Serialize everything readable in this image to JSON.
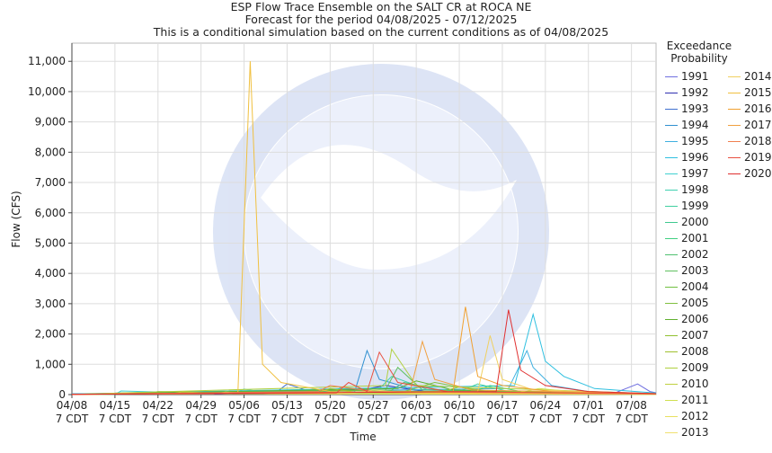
{
  "chart_data": {
    "type": "line",
    "title": "ESP Flow Trace Ensemble on the SALT CR at ROCA NE",
    "subtitle": "Forecast for the period 04/08/2025 - 07/12/2025",
    "subtitle2": "This is a conditional simulation based on the current conditions as of 04/08/2025",
    "x_label": "Time",
    "y_label": "Flow (CFS)",
    "legend_title": "Exceedance Probability",
    "xlim": [
      "04/08",
      "07/12"
    ],
    "xticks": [
      "04/08",
      "04/15",
      "04/22",
      "04/29",
      "05/06",
      "05/13",
      "05/20",
      "05/27",
      "06/03",
      "06/10",
      "06/17",
      "06/24",
      "07/01",
      "07/08"
    ],
    "xtick_sublabel": "7 CDT",
    "ylim": [
      0,
      11600
    ],
    "yticks": [
      0,
      {
        "value": 1000,
        "label": "1,000"
      },
      {
        "value": 2000,
        "label": "2,000"
      },
      {
        "value": 3000,
        "label": "3,000"
      },
      {
        "value": 4000,
        "label": "4,000"
      },
      {
        "value": 5000,
        "label": "5,000"
      },
      {
        "value": 6000,
        "label": "6,000"
      },
      {
        "value": 7000,
        "label": "7,000"
      },
      {
        "value": 8000,
        "label": "8,000"
      },
      {
        "value": 9000,
        "label": "9,000"
      },
      {
        "value": 10000,
        "label": "10,000"
      },
      {
        "value": 11000,
        "label": "11,000"
      }
    ],
    "grid": true,
    "series": [
      {
        "name": "1991",
        "color": "#7070e0",
        "x": [
          "04/08",
          "07/05",
          "07/09",
          "07/11",
          "07/12"
        ],
        "values": [
          20,
          30,
          350,
          100,
          60
        ]
      },
      {
        "name": "1992",
        "color": "#3030b0",
        "x": [
          "04/08",
          "05/25",
          "05/29",
          "06/05",
          "07/12"
        ],
        "values": [
          10,
          150,
          300,
          80,
          20
        ]
      },
      {
        "name": "1993",
        "color": "#4070d0",
        "x": [
          "04/08",
          "05/11",
          "05/13",
          "05/16",
          "05/25",
          "07/12"
        ],
        "values": [
          10,
          40,
          350,
          150,
          60,
          10
        ]
      },
      {
        "name": "1994",
        "color": "#3090d0",
        "x": [
          "04/08",
          "05/24",
          "05/26",
          "05/28",
          "06/03",
          "07/12"
        ],
        "values": [
          20,
          100,
          1450,
          500,
          150,
          30
        ]
      },
      {
        "name": "1995",
        "color": "#40b0e0",
        "x": [
          "04/08",
          "06/18",
          "06/21",
          "06/22",
          "06/25",
          "07/01",
          "07/12"
        ],
        "values": [
          20,
          200,
          1450,
          900,
          300,
          100,
          30
        ]
      },
      {
        "name": "1996",
        "color": "#30c0e0",
        "x": [
          "04/08",
          "06/19",
          "06/22",
          "06/24",
          "06/27",
          "07/02",
          "07/12"
        ],
        "values": [
          20,
          300,
          2650,
          1100,
          600,
          200,
          50
        ]
      },
      {
        "name": "1997",
        "color": "#40d0d0",
        "x": [
          "04/08",
          "04/15",
          "04/16",
          "05/04",
          "05/06",
          "05/10",
          "07/12"
        ],
        "values": [
          10,
          10,
          120,
          20,
          180,
          50,
          10
        ]
      },
      {
        "name": "1998",
        "color": "#40d0b0",
        "x": [
          "04/08",
          "05/28",
          "05/30",
          "06/05",
          "07/12"
        ],
        "values": [
          10,
          200,
          600,
          150,
          20
        ]
      },
      {
        "name": "1999",
        "color": "#40d0a0",
        "x": [
          "04/08",
          "06/10",
          "06/13",
          "06/18",
          "07/12"
        ],
        "values": [
          10,
          100,
          350,
          100,
          20
        ]
      },
      {
        "name": "2000",
        "color": "#40c890",
        "x": [
          "04/08",
          "05/20",
          "05/22",
          "05/30",
          "07/12"
        ],
        "values": [
          10,
          80,
          250,
          60,
          10
        ]
      },
      {
        "name": "2001",
        "color": "#40d080",
        "x": [
          "04/08",
          "06/12",
          "06/15",
          "06/20",
          "07/12"
        ],
        "values": [
          10,
          80,
          300,
          100,
          10
        ]
      },
      {
        "name": "2002",
        "color": "#50c070",
        "x": [
          "04/08",
          "05/30",
          "06/01",
          "06/08",
          "07/12"
        ],
        "values": [
          10,
          150,
          400,
          100,
          20
        ]
      },
      {
        "name": "2003",
        "color": "#60c060",
        "x": [
          "04/08",
          "05/29",
          "05/31",
          "06/04",
          "07/12"
        ],
        "values": [
          10,
          150,
          900,
          150,
          20
        ]
      },
      {
        "name": "2004",
        "color": "#70c040",
        "x": [
          "04/08",
          "04/20",
          "04/22",
          "05/15",
          "05/17",
          "07/12"
        ],
        "values": [
          10,
          20,
          100,
          30,
          150,
          10
        ]
      },
      {
        "name": "2005",
        "color": "#80c040",
        "x": [
          "04/08",
          "06/01",
          "06/06",
          "06/14",
          "07/12"
        ],
        "values": [
          10,
          100,
          400,
          100,
          20
        ]
      },
      {
        "name": "2006",
        "color": "#60b030",
        "x": [
          "04/08",
          "05/31",
          "06/03",
          "06/09",
          "07/12"
        ],
        "values": [
          10,
          200,
          450,
          150,
          30
        ]
      },
      {
        "name": "2007",
        "color": "#90c030",
        "x": [
          "04/08",
          "06/07",
          "06/10",
          "06/17",
          "07/12"
        ],
        "values": [
          10,
          100,
          250,
          60,
          10
        ]
      },
      {
        "name": "2008",
        "color": "#a0c030",
        "x": [
          "04/08",
          "05/18",
          "05/20",
          "05/25",
          "07/12"
        ],
        "values": [
          10,
          60,
          200,
          50,
          10
        ]
      },
      {
        "name": "2009",
        "color": "#b0d040",
        "x": [
          "04/08",
          "05/29",
          "05/30",
          "06/03",
          "07/12"
        ],
        "values": [
          10,
          300,
          1500,
          300,
          30
        ]
      },
      {
        "name": "2010",
        "color": "#c0d040",
        "x": [
          "04/08",
          "04/24",
          "04/26",
          "05/03",
          "07/12"
        ],
        "values": [
          10,
          20,
          90,
          20,
          10
        ]
      },
      {
        "name": "2011",
        "color": "#d0e050",
        "x": [
          "04/08",
          "06/20",
          "06/23",
          "06/29",
          "07/12"
        ],
        "values": [
          10,
          80,
          200,
          80,
          20
        ]
      },
      {
        "name": "2012",
        "color": "#e8e060",
        "x": [
          "04/08",
          "05/01",
          "05/03",
          "05/10",
          "07/12"
        ],
        "values": [
          10,
          20,
          80,
          20,
          10
        ]
      },
      {
        "name": "2013",
        "color": "#f0e070",
        "x": [
          "04/08",
          "05/24",
          "05/27",
          "06/02",
          "07/12"
        ],
        "values": [
          10,
          50,
          150,
          50,
          10
        ]
      },
      {
        "name": "2014",
        "color": "#f0d060",
        "x": [
          "04/08",
          "06/13",
          "06/15",
          "06/17",
          "06/22",
          "07/12"
        ],
        "values": [
          10,
          100,
          1950,
          500,
          150,
          30
        ]
      },
      {
        "name": "2015",
        "color": "#f0c040",
        "x": [
          "04/08",
          "05/05",
          "05/07",
          "05/09",
          "05/12",
          "05/20",
          "06/01",
          "07/12"
        ],
        "values": [
          10,
          50,
          11000,
          1000,
          400,
          100,
          50,
          20
        ]
      },
      {
        "name": "2016",
        "color": "#f0a030",
        "x": [
          "04/08",
          "06/09",
          "06/11",
          "06/13",
          "06/17",
          "06/25",
          "07/12"
        ],
        "values": [
          10,
          100,
          2900,
          600,
          300,
          100,
          30
        ]
      },
      {
        "name": "2017",
        "color": "#f0a040",
        "x": [
          "04/08",
          "06/02",
          "06/04",
          "06/06",
          "06/12",
          "07/12"
        ],
        "values": [
          10,
          100,
          1750,
          500,
          150,
          30
        ]
      },
      {
        "name": "2018",
        "color": "#f08050",
        "x": [
          "04/08",
          "05/18",
          "05/20",
          "05/27",
          "07/12"
        ],
        "values": [
          10,
          100,
          300,
          100,
          20
        ]
      },
      {
        "name": "2019",
        "color": "#e85040",
        "x": [
          "04/08",
          "05/21",
          "05/23",
          "05/26",
          "05/28",
          "05/31",
          "06/08",
          "07/12"
        ],
        "values": [
          10,
          50,
          400,
          100,
          1400,
          400,
          100,
          20
        ]
      },
      {
        "name": "2020",
        "color": "#e03030",
        "x": [
          "04/08",
          "06/16",
          "06/18",
          "06/20",
          "06/24",
          "07/01",
          "07/12"
        ],
        "values": [
          10,
          100,
          2800,
          800,
          300,
          100,
          30
        ]
      }
    ]
  }
}
